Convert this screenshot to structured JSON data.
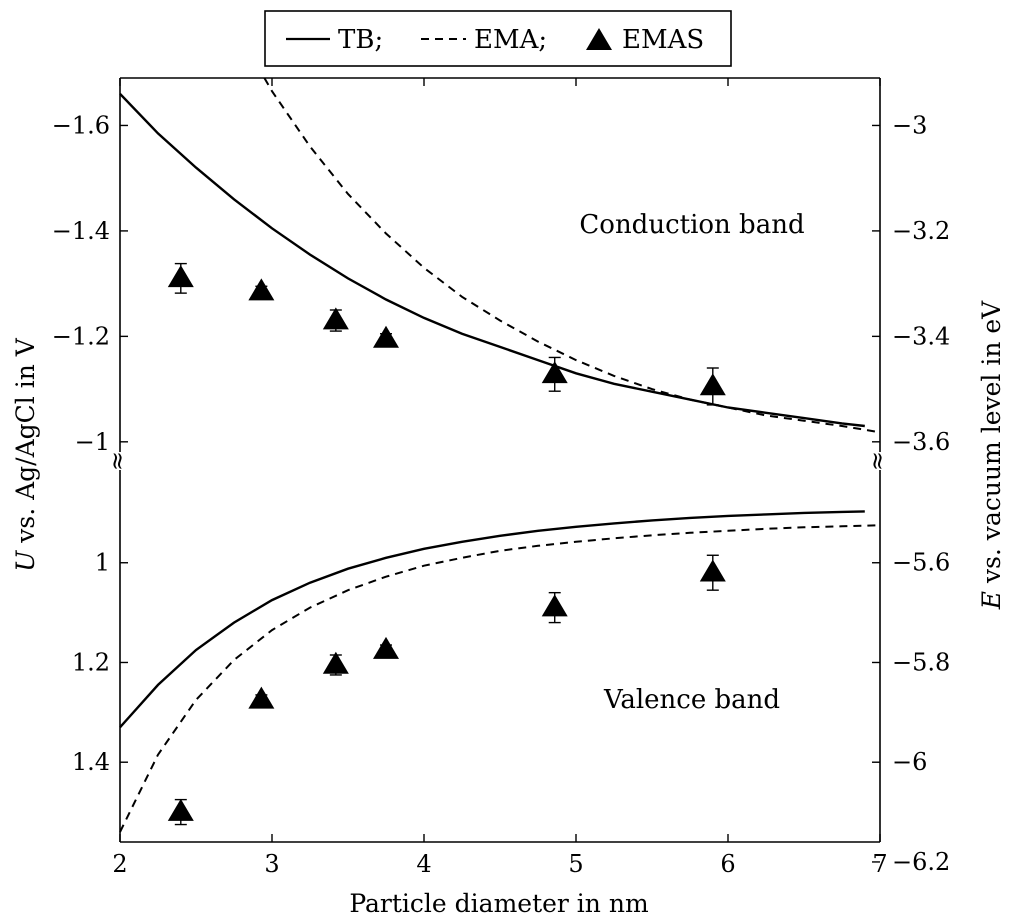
{
  "chart_data": {
    "type": "line",
    "xlabel": "Particle diameter in nm",
    "ylabel_left_var": "U",
    "ylabel_left_rest": " vs. Ag/AgCl in V",
    "ylabel_right_var": "E",
    "ylabel_right_rest": " vs. vacuum level in eV",
    "xlim": [
      2,
      7
    ],
    "x_ticks": [
      2,
      3,
      4,
      5,
      6,
      7
    ],
    "x_tick_labels": [
      "2",
      "3",
      "4",
      "5",
      "6",
      "7"
    ],
    "axis_break_symbol": "≈",
    "legend": {
      "placement": "top-center",
      "entries": [
        {
          "label": "TB;",
          "style": "solid"
        },
        {
          "label": "EMA;",
          "style": "dashed"
        },
        {
          "label": "EMAS",
          "style": "triangle"
        }
      ]
    },
    "panels": [
      {
        "name": "conduction",
        "annotation": "Conduction band",
        "left_ylim": [
          -0.975,
          -1.69
        ],
        "left_ticks": [
          -1.6,
          -1.4,
          -1.2,
          -1
        ],
        "left_tick_labels": [
          "−1.6",
          "−1.4",
          "−1.2",
          "−1"
        ],
        "right_ticks": [
          -3.0,
          -3.2,
          -3.4,
          -3.6
        ],
        "right_tick_labels": [
          "−3",
          "−3.2",
          "−3.4",
          "−3.6"
        ],
        "right_axis_offset_eV": -4.6,
        "series": [
          {
            "name": "TB",
            "style": "solid",
            "x": [
              2.0,
              2.25,
              2.5,
              2.75,
              3.0,
              3.25,
              3.5,
              3.75,
              4.0,
              4.25,
              4.5,
              4.75,
              5.0,
              5.25,
              5.5,
              5.75,
              6.0,
              6.25,
              6.5,
              6.75,
              6.9
            ],
            "y": [
              -1.66,
              -1.585,
              -1.52,
              -1.46,
              -1.405,
              -1.355,
              -1.31,
              -1.27,
              -1.235,
              -1.205,
              -1.18,
              -1.155,
              -1.13,
              -1.11,
              -1.095,
              -1.08,
              -1.065,
              -1.055,
              -1.045,
              -1.035,
              -1.03
            ]
          },
          {
            "name": "EMA",
            "style": "dashed",
            "x": [
              2.95,
              3.0,
              3.25,
              3.5,
              3.75,
              4.0,
              4.25,
              4.5,
              4.75,
              5.0,
              5.25,
              5.5,
              5.75,
              6.0,
              6.25,
              6.5,
              6.75,
              7.0
            ],
            "y": [
              -1.69,
              -1.665,
              -1.56,
              -1.47,
              -1.395,
              -1.33,
              -1.275,
              -1.23,
              -1.19,
              -1.155,
              -1.125,
              -1.1,
              -1.08,
              -1.065,
              -1.05,
              -1.04,
              -1.03,
              -1.018
            ]
          },
          {
            "name": "EMAS",
            "style": "triangle",
            "x": [
              2.4,
              2.93,
              3.42,
              3.75,
              4.86,
              5.9
            ],
            "y": [
              -1.31,
              -1.285,
              -1.23,
              -1.195,
              -1.128,
              -1.105
            ],
            "err": [
              0.028,
              0.01,
              0.02,
              0.01,
              0.032,
              0.035
            ]
          }
        ]
      },
      {
        "name": "valence",
        "annotation": "Valence band",
        "left_ylim": [
          0.81,
          1.56
        ],
        "left_ticks": [
          1,
          1.2,
          1.4
        ],
        "left_tick_labels": [
          "1",
          "1.2",
          "1.4"
        ],
        "right_ticks": [
          -5.6,
          -5.8,
          -6.0,
          -6.2
        ],
        "right_tick_labels": [
          "−5.6",
          "−5.8",
          "−6",
          "−6.2"
        ],
        "right_axis_offset_eV": -4.6,
        "series": [
          {
            "name": "TB",
            "style": "solid",
            "x": [
              2.0,
              2.25,
              2.5,
              2.75,
              3.0,
              3.25,
              3.5,
              3.75,
              4.0,
              4.25,
              4.5,
              4.75,
              5.0,
              5.25,
              5.5,
              5.75,
              6.0,
              6.25,
              6.5,
              6.75,
              6.9
            ],
            "y": [
              1.33,
              1.245,
              1.175,
              1.12,
              1.075,
              1.04,
              1.012,
              0.99,
              0.972,
              0.958,
              0.946,
              0.936,
              0.928,
              0.921,
              0.915,
              0.91,
              0.906,
              0.903,
              0.9,
              0.898,
              0.897
            ]
          },
          {
            "name": "EMA",
            "style": "dashed",
            "x": [
              2.0,
              2.25,
              2.5,
              2.75,
              3.0,
              3.25,
              3.5,
              3.75,
              4.0,
              4.25,
              4.5,
              4.75,
              5.0,
              5.25,
              5.5,
              5.75,
              6.0,
              6.25,
              6.5,
              6.75,
              7.0
            ],
            "y": [
              1.54,
              1.385,
              1.275,
              1.195,
              1.135,
              1.09,
              1.055,
              1.028,
              1.006,
              0.99,
              0.976,
              0.966,
              0.958,
              0.951,
              0.945,
              0.94,
              0.936,
              0.932,
              0.929,
              0.927,
              0.925
            ]
          },
          {
            "name": "EMAS",
            "style": "triangle",
            "x": [
              2.4,
              2.93,
              3.42,
              3.75,
              4.86,
              5.9
            ],
            "y": [
              1.5,
              1.275,
              1.205,
              1.175,
              1.09,
              1.02
            ],
            "err": [
              0.025,
              0.01,
              0.02,
              0.01,
              0.03,
              0.035
            ]
          }
        ]
      }
    ]
  }
}
